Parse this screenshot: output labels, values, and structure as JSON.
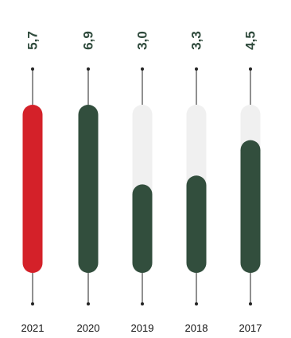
{
  "chart_data": {
    "type": "bar",
    "categories": [
      "2021",
      "2020",
      "2019",
      "2018",
      "2017"
    ],
    "values": [
      5.7,
      6.9,
      3.0,
      3.3,
      4.5
    ],
    "value_labels": [
      "5,7",
      "6,9",
      "3,0",
      "3,3",
      "4,5"
    ],
    "scale_max": 5.7,
    "ylim": [
      0,
      5.7
    ],
    "grid": false,
    "legend": "none",
    "colors": {
      "highlight": "#d42129",
      "bar": "#324e3d",
      "track": "#f0f0f0",
      "line": "#222222",
      "value_text": "#2f4a3c"
    }
  }
}
